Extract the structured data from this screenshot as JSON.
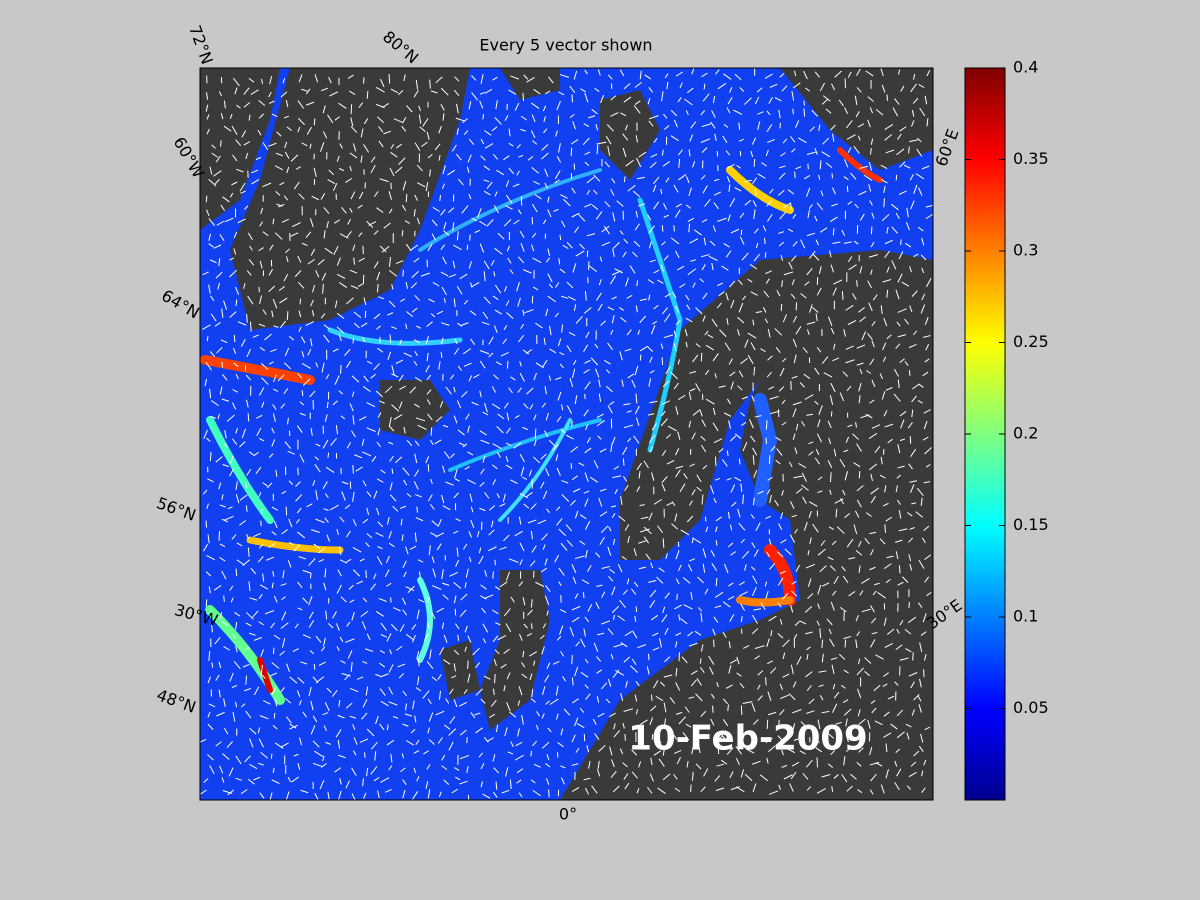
{
  "title": "Every 5 vector shown",
  "date_label": "10-Feb-2009",
  "map_labels": [
    "72°N",
    "80°N",
    "60°W",
    "64°N",
    "56°N",
    "30°W",
    "48°N",
    "0°",
    "60°E",
    "30°E"
  ],
  "colorbar": {
    "colormap": "jet",
    "lim": [
      0,
      0.4
    ],
    "ticks": [
      0.05,
      0.1,
      0.15,
      0.2,
      0.25,
      0.3,
      0.35,
      0.4
    ]
  }
}
